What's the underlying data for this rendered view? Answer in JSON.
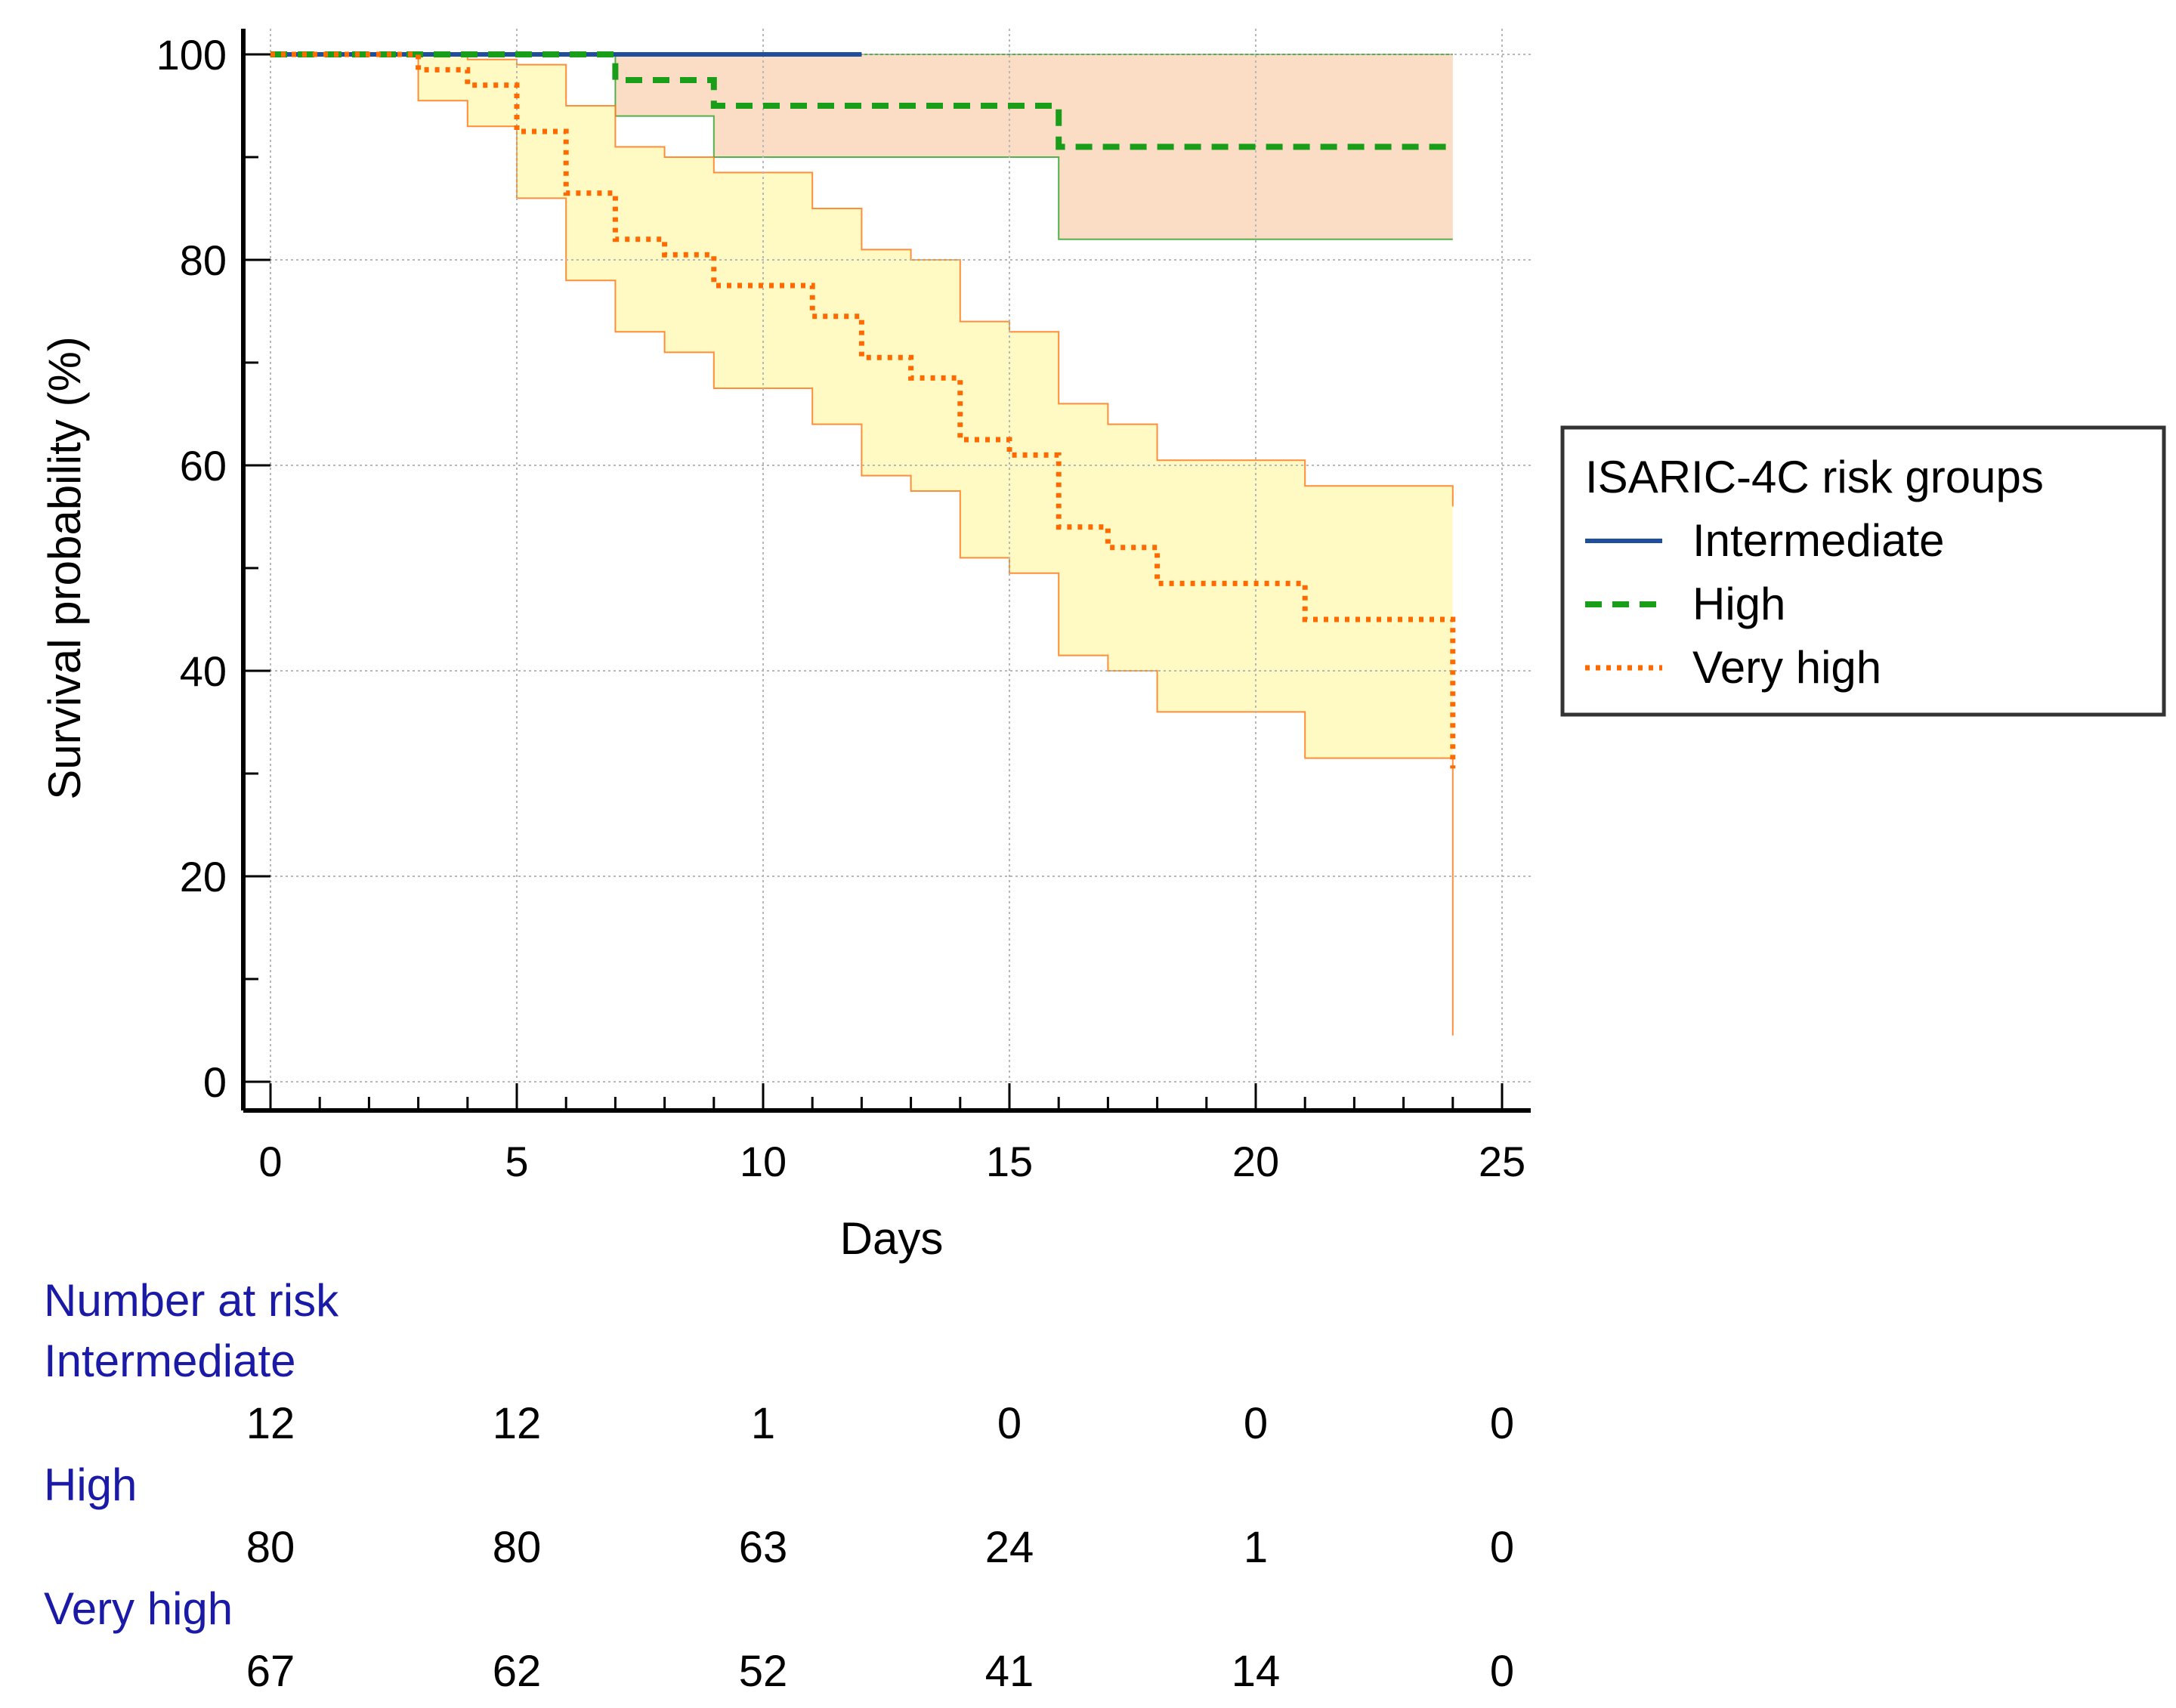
{
  "chart_data": {
    "type": "line",
    "subtype": "kaplan-meier",
    "xlabel": "Days",
    "ylabel": "Survival probability (%)",
    "xlim": [
      0,
      25
    ],
    "ylim": [
      0,
      100
    ],
    "x_ticks": [
      "0",
      "5",
      "10",
      "15",
      "20",
      "25"
    ],
    "y_ticks": [
      "0",
      "20",
      "40",
      "60",
      "80",
      "100"
    ],
    "grid": true,
    "legend": {
      "title": "ISARIC-4C risk groups",
      "position": "right",
      "entries": [
        "Intermediate",
        "High",
        "Very high"
      ]
    },
    "series": [
      {
        "name": "Intermediate",
        "color": "#1f4e9c",
        "style": "solid",
        "steps": [
          [
            0,
            100
          ],
          [
            12,
            100
          ]
        ]
      },
      {
        "name": "High",
        "color": "#1a9e1a",
        "style": "dashed",
        "steps": [
          [
            0,
            100
          ],
          [
            7,
            97.5
          ],
          [
            9,
            95
          ],
          [
            16,
            91
          ],
          [
            24,
            91
          ]
        ],
        "ci_fill": "#fbdcc4",
        "ci_upper": [
          [
            0,
            100
          ],
          [
            24,
            100
          ]
        ],
        "ci_lower": [
          [
            0,
            100
          ],
          [
            7,
            94
          ],
          [
            9,
            90
          ],
          [
            16,
            82
          ],
          [
            24,
            82
          ]
        ]
      },
      {
        "name": "Very high",
        "color": "#ff6a00",
        "style": "dotted",
        "steps": [
          [
            0,
            100
          ],
          [
            3,
            98.5
          ],
          [
            4,
            97
          ],
          [
            5,
            92.5
          ],
          [
            6,
            86.5
          ],
          [
            7,
            82
          ],
          [
            8,
            80.5
          ],
          [
            9,
            77.5
          ],
          [
            11,
            74.5
          ],
          [
            12,
            70.5
          ],
          [
            13,
            68.5
          ],
          [
            14,
            62.5
          ],
          [
            15,
            61
          ],
          [
            16,
            54
          ],
          [
            17,
            52
          ],
          [
            18,
            48.5
          ],
          [
            21,
            45
          ],
          [
            24,
            30.5
          ]
        ],
        "ci_fill": "#fff9c4",
        "ci_upper": [
          [
            0,
            100
          ],
          [
            3,
            100
          ],
          [
            4,
            99.5
          ],
          [
            5,
            99
          ],
          [
            6,
            95
          ],
          [
            7,
            91
          ],
          [
            8,
            90
          ],
          [
            9,
            88.5
          ],
          [
            11,
            85
          ],
          [
            12,
            81
          ],
          [
            13,
            80
          ],
          [
            14,
            74
          ],
          [
            15,
            73
          ],
          [
            16,
            66
          ],
          [
            17,
            64
          ],
          [
            18,
            60.5
          ],
          [
            21,
            58
          ],
          [
            24,
            56
          ]
        ],
        "ci_lower": [
          [
            0,
            100
          ],
          [
            3,
            95.5
          ],
          [
            4,
            93
          ],
          [
            5,
            86
          ],
          [
            6,
            78
          ],
          [
            7,
            73
          ],
          [
            8,
            71
          ],
          [
            9,
            67.5
          ],
          [
            11,
            64
          ],
          [
            12,
            59
          ],
          [
            13,
            57.5
          ],
          [
            14,
            51
          ],
          [
            15,
            49.5
          ],
          [
            16,
            41.5
          ],
          [
            17,
            40
          ],
          [
            18,
            36
          ],
          [
            21,
            31.5
          ],
          [
            24,
            4.5
          ]
        ]
      }
    ],
    "number_at_risk": {
      "title": "Number at risk",
      "times": [
        0,
        5,
        10,
        15,
        20,
        25
      ],
      "groups": [
        {
          "name": "Intermediate",
          "values": [
            "12",
            "12",
            "1",
            "0",
            "0",
            "0"
          ]
        },
        {
          "name": "High",
          "values": [
            "80",
            "80",
            "63",
            "24",
            "1",
            "0"
          ]
        },
        {
          "name": "Very high",
          "values": [
            "67",
            "62",
            "52",
            "41",
            "14",
            "0"
          ]
        }
      ]
    }
  }
}
